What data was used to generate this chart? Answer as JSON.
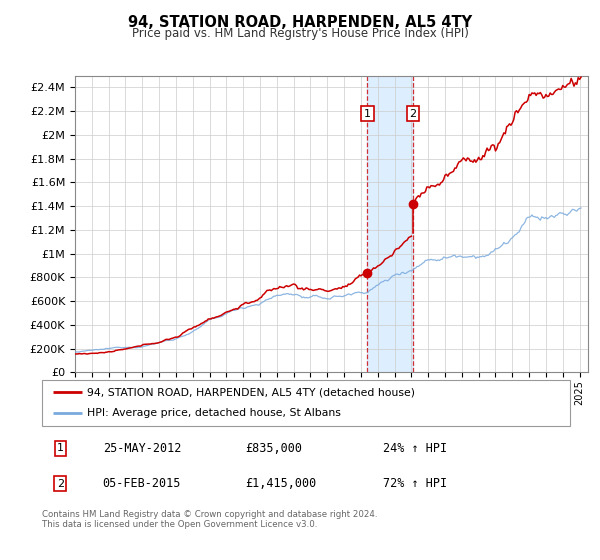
{
  "title": "94, STATION ROAD, HARPENDEN, AL5 4TY",
  "subtitle": "Price paid vs. HM Land Registry's House Price Index (HPI)",
  "legend_line1": "94, STATION ROAD, HARPENDEN, AL5 4TY (detached house)",
  "legend_line2": "HPI: Average price, detached house, St Albans",
  "sale1_date": "25-MAY-2012",
  "sale1_price": 835000,
  "sale1_label": "24% ↑ HPI",
  "sale1_x": 2012.39,
  "sale2_date": "05-FEB-2015",
  "sale2_price": 1415000,
  "sale2_label": "72% ↑ HPI",
  "sale2_x": 2015.09,
  "red_color": "#cc0000",
  "blue_color": "#7aaadd",
  "shade_color": "#ddeeff",
  "xlim_left": 1995.0,
  "xlim_right": 2025.5,
  "ylim_bottom": 0,
  "ylim_top": 2500000,
  "yticks": [
    0,
    200000,
    400000,
    600000,
    800000,
    1000000,
    1200000,
    1400000,
    1600000,
    1800000,
    2000000,
    2200000,
    2400000
  ],
  "footer": "Contains HM Land Registry data © Crown copyright and database right 2024.\nThis data is licensed under the Open Government Licence v3.0."
}
